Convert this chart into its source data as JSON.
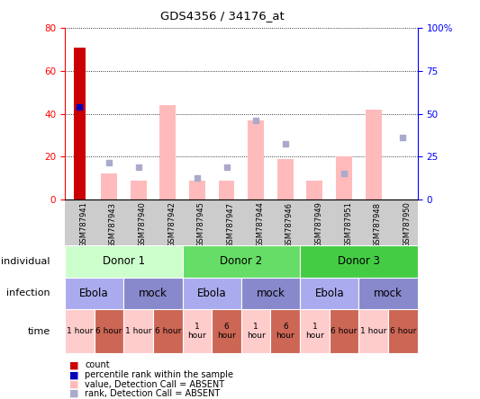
{
  "title": "GDS4356 / 34176_at",
  "samples": [
    "GSM787941",
    "GSM787943",
    "GSM787940",
    "GSM787942",
    "GSM787945",
    "GSM787947",
    "GSM787944",
    "GSM787946",
    "GSM787949",
    "GSM787951",
    "GSM787948",
    "GSM787950"
  ],
  "count_values": [
    71,
    0,
    0,
    0,
    0,
    0,
    0,
    0,
    0,
    0,
    0,
    0
  ],
  "percentile_rank": [
    43,
    0,
    0,
    0,
    0,
    0,
    0,
    0,
    0,
    0,
    0,
    0
  ],
  "absent_value": [
    0,
    12,
    9,
    44,
    9,
    9,
    37,
    19,
    9,
    20,
    42,
    0
  ],
  "absent_rank": [
    0,
    17,
    15,
    0,
    10,
    15,
    37,
    26,
    0,
    12,
    0,
    29
  ],
  "ylim_left": [
    0,
    80
  ],
  "ylim_right": [
    0,
    100
  ],
  "yticks_left": [
    0,
    20,
    40,
    60,
    80
  ],
  "yticks_right": [
    0,
    25,
    50,
    75,
    100
  ],
  "ytick_labels_left": [
    "0",
    "20",
    "40",
    "60",
    "80"
  ],
  "ytick_labels_right": [
    "0",
    "25",
    "50",
    "75",
    "100%"
  ],
  "donor_groups": [
    {
      "label": "Donor 1",
      "start": 0,
      "end": 4,
      "color": "#ccffcc"
    },
    {
      "label": "Donor 2",
      "start": 4,
      "end": 8,
      "color": "#66dd66"
    },
    {
      "label": "Donor 3",
      "start": 8,
      "end": 12,
      "color": "#44cc44"
    }
  ],
  "infection_groups": [
    {
      "label": "Ebola",
      "start": 0,
      "end": 2,
      "color": "#aaaaee"
    },
    {
      "label": "mock",
      "start": 2,
      "end": 4,
      "color": "#8888cc"
    },
    {
      "label": "Ebola",
      "start": 4,
      "end": 6,
      "color": "#aaaaee"
    },
    {
      "label": "mock",
      "start": 6,
      "end": 8,
      "color": "#8888cc"
    },
    {
      "label": "Ebola",
      "start": 8,
      "end": 10,
      "color": "#aaaaee"
    },
    {
      "label": "mock",
      "start": 10,
      "end": 12,
      "color": "#8888cc"
    }
  ],
  "time_groups": [
    {
      "label": "1 hour",
      "start": 0,
      "end": 1,
      "color": "#ffcccc",
      "two_line": false
    },
    {
      "label": "6 hour",
      "start": 1,
      "end": 2,
      "color": "#cc6655",
      "two_line": false
    },
    {
      "label": "1 hour",
      "start": 2,
      "end": 3,
      "color": "#ffcccc",
      "two_line": false
    },
    {
      "label": "6 hour",
      "start": 3,
      "end": 4,
      "color": "#cc6655",
      "two_line": false
    },
    {
      "label": "1\nhour",
      "start": 4,
      "end": 5,
      "color": "#ffcccc",
      "two_line": true
    },
    {
      "label": "6\nhour",
      "start": 5,
      "end": 6,
      "color": "#cc6655",
      "two_line": true
    },
    {
      "label": "1\nhour",
      "start": 6,
      "end": 7,
      "color": "#ffcccc",
      "two_line": true
    },
    {
      "label": "6\nhour",
      "start": 7,
      "end": 8,
      "color": "#cc6655",
      "two_line": true
    },
    {
      "label": "1\nhour",
      "start": 8,
      "end": 9,
      "color": "#ffcccc",
      "two_line": true
    },
    {
      "label": "6 hour",
      "start": 9,
      "end": 10,
      "color": "#cc6655",
      "two_line": false
    },
    {
      "label": "1 hour",
      "start": 10,
      "end": 11,
      "color": "#ffcccc",
      "two_line": false
    },
    {
      "label": "6 hour",
      "start": 11,
      "end": 12,
      "color": "#cc6655",
      "two_line": false
    }
  ],
  "color_count": "#cc0000",
  "color_percentile": "#0000bb",
  "color_absent_value": "#ffbbbb",
  "color_absent_rank": "#aaaacc",
  "bar_width": 0.4,
  "absent_bar_width": 0.55,
  "background_color": "#ffffff",
  "xtick_bg": "#cccccc"
}
